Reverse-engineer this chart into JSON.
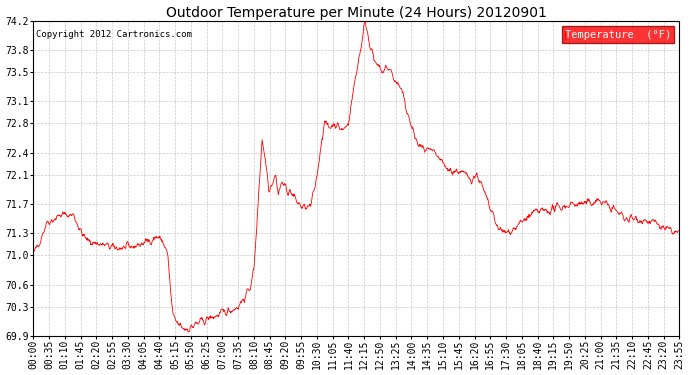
{
  "title": "Outdoor Temperature per Minute (24 Hours) 20120901",
  "copyright_text": "Copyright 2012 Cartronics.com",
  "legend_label": "Temperature  (°F)",
  "line_color": "red",
  "background_color": "white",
  "grid_color": "#bbbbbb",
  "ylim": [
    69.9,
    74.2
  ],
  "yticks": [
    69.9,
    70.3,
    70.6,
    71.0,
    71.3,
    71.7,
    72.1,
    72.4,
    72.8,
    73.1,
    73.5,
    73.8,
    74.2
  ],
  "xtick_labels": [
    "00:00",
    "00:35",
    "01:10",
    "01:45",
    "02:20",
    "02:55",
    "03:30",
    "04:05",
    "04:40",
    "05:15",
    "05:50",
    "06:25",
    "07:00",
    "07:35",
    "08:10",
    "08:45",
    "09:20",
    "09:55",
    "10:30",
    "11:05",
    "11:40",
    "12:15",
    "12:50",
    "13:25",
    "14:00",
    "14:35",
    "15:10",
    "15:45",
    "16:20",
    "16:55",
    "17:30",
    "18:05",
    "18:40",
    "19:15",
    "19:50",
    "20:25",
    "21:00",
    "21:35",
    "22:10",
    "22:45",
    "23:20",
    "23:55"
  ],
  "num_points": 1440,
  "seed": 42
}
